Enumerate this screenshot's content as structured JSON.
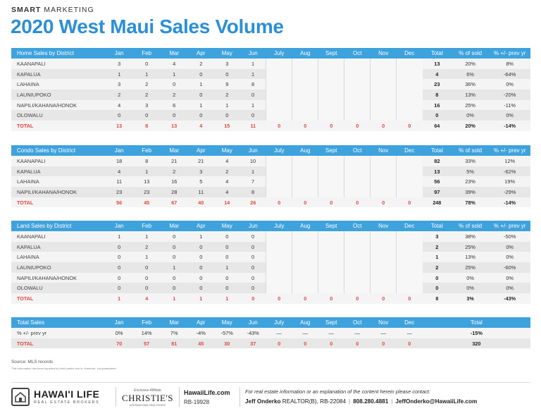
{
  "header": {
    "brand_bold": "SMART",
    "brand_rest": " MARKETING",
    "title": "2020 West Maui Sales Volume"
  },
  "months": [
    "Jan",
    "Feb",
    "Mar",
    "Apr",
    "May",
    "Jun",
    "July",
    "Aug",
    "Sept",
    "Oct",
    "Nov",
    "Dec"
  ],
  "col_labels": {
    "total": "Total",
    "pct_sold": "% of sold",
    "prev_yr": "% +/- prev yr"
  },
  "home": {
    "title": "Home Sales by District",
    "rows": [
      {
        "name": "KAANAPALI",
        "m": [
          "3",
          "0",
          "4",
          "2",
          "3",
          "1"
        ],
        "total": "13",
        "pct": "20%",
        "prev": "8%"
      },
      {
        "name": "KAPALUA",
        "m": [
          "1",
          "1",
          "1",
          "0",
          "0",
          "1"
        ],
        "total": "4",
        "pct": "6%",
        "prev": "-64%"
      },
      {
        "name": "LAHAINA",
        "m": [
          "3",
          "2",
          "0",
          "1",
          "9",
          "8"
        ],
        "total": "23",
        "pct": "36%",
        "prev": "0%"
      },
      {
        "name": "LAUNIUPOKO",
        "m": [
          "2",
          "2",
          "2",
          "0",
          "2",
          "0"
        ],
        "total": "8",
        "pct": "13%",
        "prev": "-20%"
      },
      {
        "name": "NAPILI/KAHANA/HONOK",
        "m": [
          "4",
          "3",
          "6",
          "1",
          "1",
          "1"
        ],
        "total": "16",
        "pct": "25%",
        "prev": "-11%"
      },
      {
        "name": "OLOWALU",
        "m": [
          "0",
          "0",
          "0",
          "0",
          "0",
          "0"
        ],
        "total": "0",
        "pct": "0%",
        "prev": "0%"
      }
    ],
    "total": {
      "name": "TOTAL",
      "m": [
        "13",
        "8",
        "13",
        "4",
        "15",
        "11",
        "0",
        "0",
        "0",
        "0",
        "0",
        "0"
      ],
      "total": "64",
      "pct": "20%",
      "prev": "-14%"
    }
  },
  "condo": {
    "title": "Condo Sales by District",
    "rows": [
      {
        "name": "KAANAPALI",
        "m": [
          "18",
          "8",
          "21",
          "21",
          "4",
          "10"
        ],
        "total": "82",
        "pct": "33%",
        "prev": "12%"
      },
      {
        "name": "KAPALUA",
        "m": [
          "4",
          "1",
          "2",
          "3",
          "2",
          "1"
        ],
        "total": "13",
        "pct": "5%",
        "prev": "-62%"
      },
      {
        "name": "LAHAINA",
        "m": [
          "11",
          "13",
          "16",
          "5",
          "4",
          "7"
        ],
        "total": "56",
        "pct": "23%",
        "prev": "19%"
      },
      {
        "name": "NAPILI/KAHANA/HONOK",
        "m": [
          "23",
          "23",
          "28",
          "11",
          "4",
          "8"
        ],
        "total": "97",
        "pct": "39%",
        "prev": "-29%"
      }
    ],
    "total": {
      "name": "TOTAL",
      "m": [
        "56",
        "45",
        "67",
        "40",
        "14",
        "26",
        "0",
        "0",
        "0",
        "0",
        "0",
        "0"
      ],
      "total": "248",
      "pct": "78%",
      "prev": "-14%"
    }
  },
  "land": {
    "title": "Land Sales by District",
    "rows": [
      {
        "name": "KAANAPALI",
        "m": [
          "1",
          "1",
          "0",
          "1",
          "0",
          "0"
        ],
        "total": "3",
        "pct": "38%",
        "prev": "-50%"
      },
      {
        "name": "KAPALUA",
        "m": [
          "0",
          "2",
          "0",
          "0",
          "0",
          "0"
        ],
        "total": "2",
        "pct": "25%",
        "prev": "0%"
      },
      {
        "name": "LAHAINA",
        "m": [
          "0",
          "1",
          "0",
          "0",
          "0",
          "0"
        ],
        "total": "1",
        "pct": "13%",
        "prev": "0%"
      },
      {
        "name": "LAUNIUPOKO",
        "m": [
          "0",
          "0",
          "1",
          "0",
          "1",
          "0"
        ],
        "total": "2",
        "pct": "25%",
        "prev": "-60%"
      },
      {
        "name": "NAPILI/KAHANA/HONOK",
        "m": [
          "0",
          "0",
          "0",
          "0",
          "0",
          "0"
        ],
        "total": "0",
        "pct": "0%",
        "prev": "0%"
      },
      {
        "name": "OLOWALU",
        "m": [
          "0",
          "0",
          "0",
          "0",
          "0",
          "0"
        ],
        "total": "0",
        "pct": "0%",
        "prev": "0%"
      }
    ],
    "total": {
      "name": "TOTAL",
      "m": [
        "1",
        "4",
        "1",
        "1",
        "1",
        "0",
        "0",
        "0",
        "0",
        "0",
        "0",
        "0"
      ],
      "total": "8",
      "pct": "3%",
      "prev": "-43%"
    }
  },
  "summary": {
    "title": "Total Sales",
    "total_label": "Total",
    "prev_row": {
      "name": "% +/- prev yr",
      "m": [
        "0%",
        "14%",
        "7%",
        "-4%",
        "-57%",
        "-43%",
        "—",
        "—",
        "—",
        "—",
        "—",
        "—"
      ],
      "total": "-15%"
    },
    "total_row": {
      "name": "TOTAL",
      "m": [
        "70",
        "57",
        "81",
        "45",
        "30",
        "37",
        "0",
        "0",
        "0",
        "0",
        "0",
        "0"
      ],
      "total": "320"
    }
  },
  "notes": {
    "source": "Source: MLS records",
    "disclaimer": "This information has been supplied by third parties and is, therefore, not guaranteed."
  },
  "footer": {
    "logo_name": "HAWAI'I LIFE",
    "logo_sub": "REAL ESTATE BROKERS",
    "aff_small": "Exclusive Affiliate",
    "aff_name": "CHRISTIE'S",
    "aff_sub": "INTERNATIONAL REAL ESTATE",
    "website": "HawaiiLife.com",
    "license": "RB-19928",
    "contact_note": "For real estate information or an explanation of the content herein please contact:",
    "agent_name": "Jeff Onderko",
    "agent_title": "REALTOR(B), RB-22084",
    "phone": "808.280.4881",
    "email": "JeffOnderko@HawaiiLife.com"
  }
}
